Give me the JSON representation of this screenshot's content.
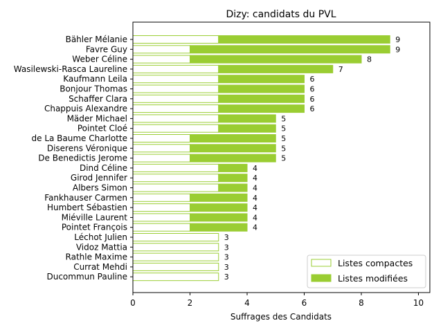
{
  "chart_data": {
    "type": "bar",
    "orientation": "horizontal",
    "stacked": true,
    "title": "Dizy: candidats du PVL",
    "xlabel": "Suffrages des Candidats",
    "ylabel": "",
    "xlim": [
      0,
      10.4
    ],
    "xticks": [
      0,
      2,
      4,
      6,
      8,
      10
    ],
    "grid": false,
    "legend_position": "bottom-right",
    "categories": [
      "Bähler Mélanie",
      "Favre Guy",
      "Weber Céline",
      "Wasilewski-Rasca Laureline",
      "Kaufmann Leila",
      "Bonjour Thomas",
      "Schaffer Clara",
      "Chappuis Alexandre",
      "Mäder Michael",
      "Pointet Cloé",
      "de La Baume Charlotte",
      "Diserens Véronique",
      "De Benedictis Jerome",
      "Dind Céline",
      "Girod Jennifer",
      "Albers Simon",
      "Fankhauser Carmen",
      "Humbert Sébastien",
      "Miéville Laurent",
      "Pointet François",
      "Léchot Julien",
      "Vidoz Mattia",
      "Rathle Maxime",
      "Currat Mehdi",
      "Ducommun Pauline"
    ],
    "series": [
      {
        "name": "Listes compactes",
        "color": "#9acd32",
        "fill": "none",
        "values": [
          3,
          2,
          2,
          3,
          3,
          3,
          3,
          3,
          3,
          3,
          2,
          2,
          2,
          3,
          3,
          3,
          2,
          2,
          2,
          2,
          3,
          3,
          3,
          3,
          3
        ]
      },
      {
        "name": "Listes modifiées",
        "color": "#9acd32",
        "fill": "solid",
        "values": [
          6,
          7,
          6,
          4,
          3,
          3,
          3,
          3,
          2,
          2,
          3,
          3,
          3,
          1,
          1,
          1,
          2,
          2,
          2,
          2,
          0,
          0,
          0,
          0,
          0
        ]
      }
    ],
    "totals": [
      9,
      9,
      8,
      7,
      6,
      6,
      6,
      6,
      5,
      5,
      5,
      5,
      5,
      4,
      4,
      4,
      4,
      4,
      4,
      4,
      3,
      3,
      3,
      3,
      3
    ]
  }
}
